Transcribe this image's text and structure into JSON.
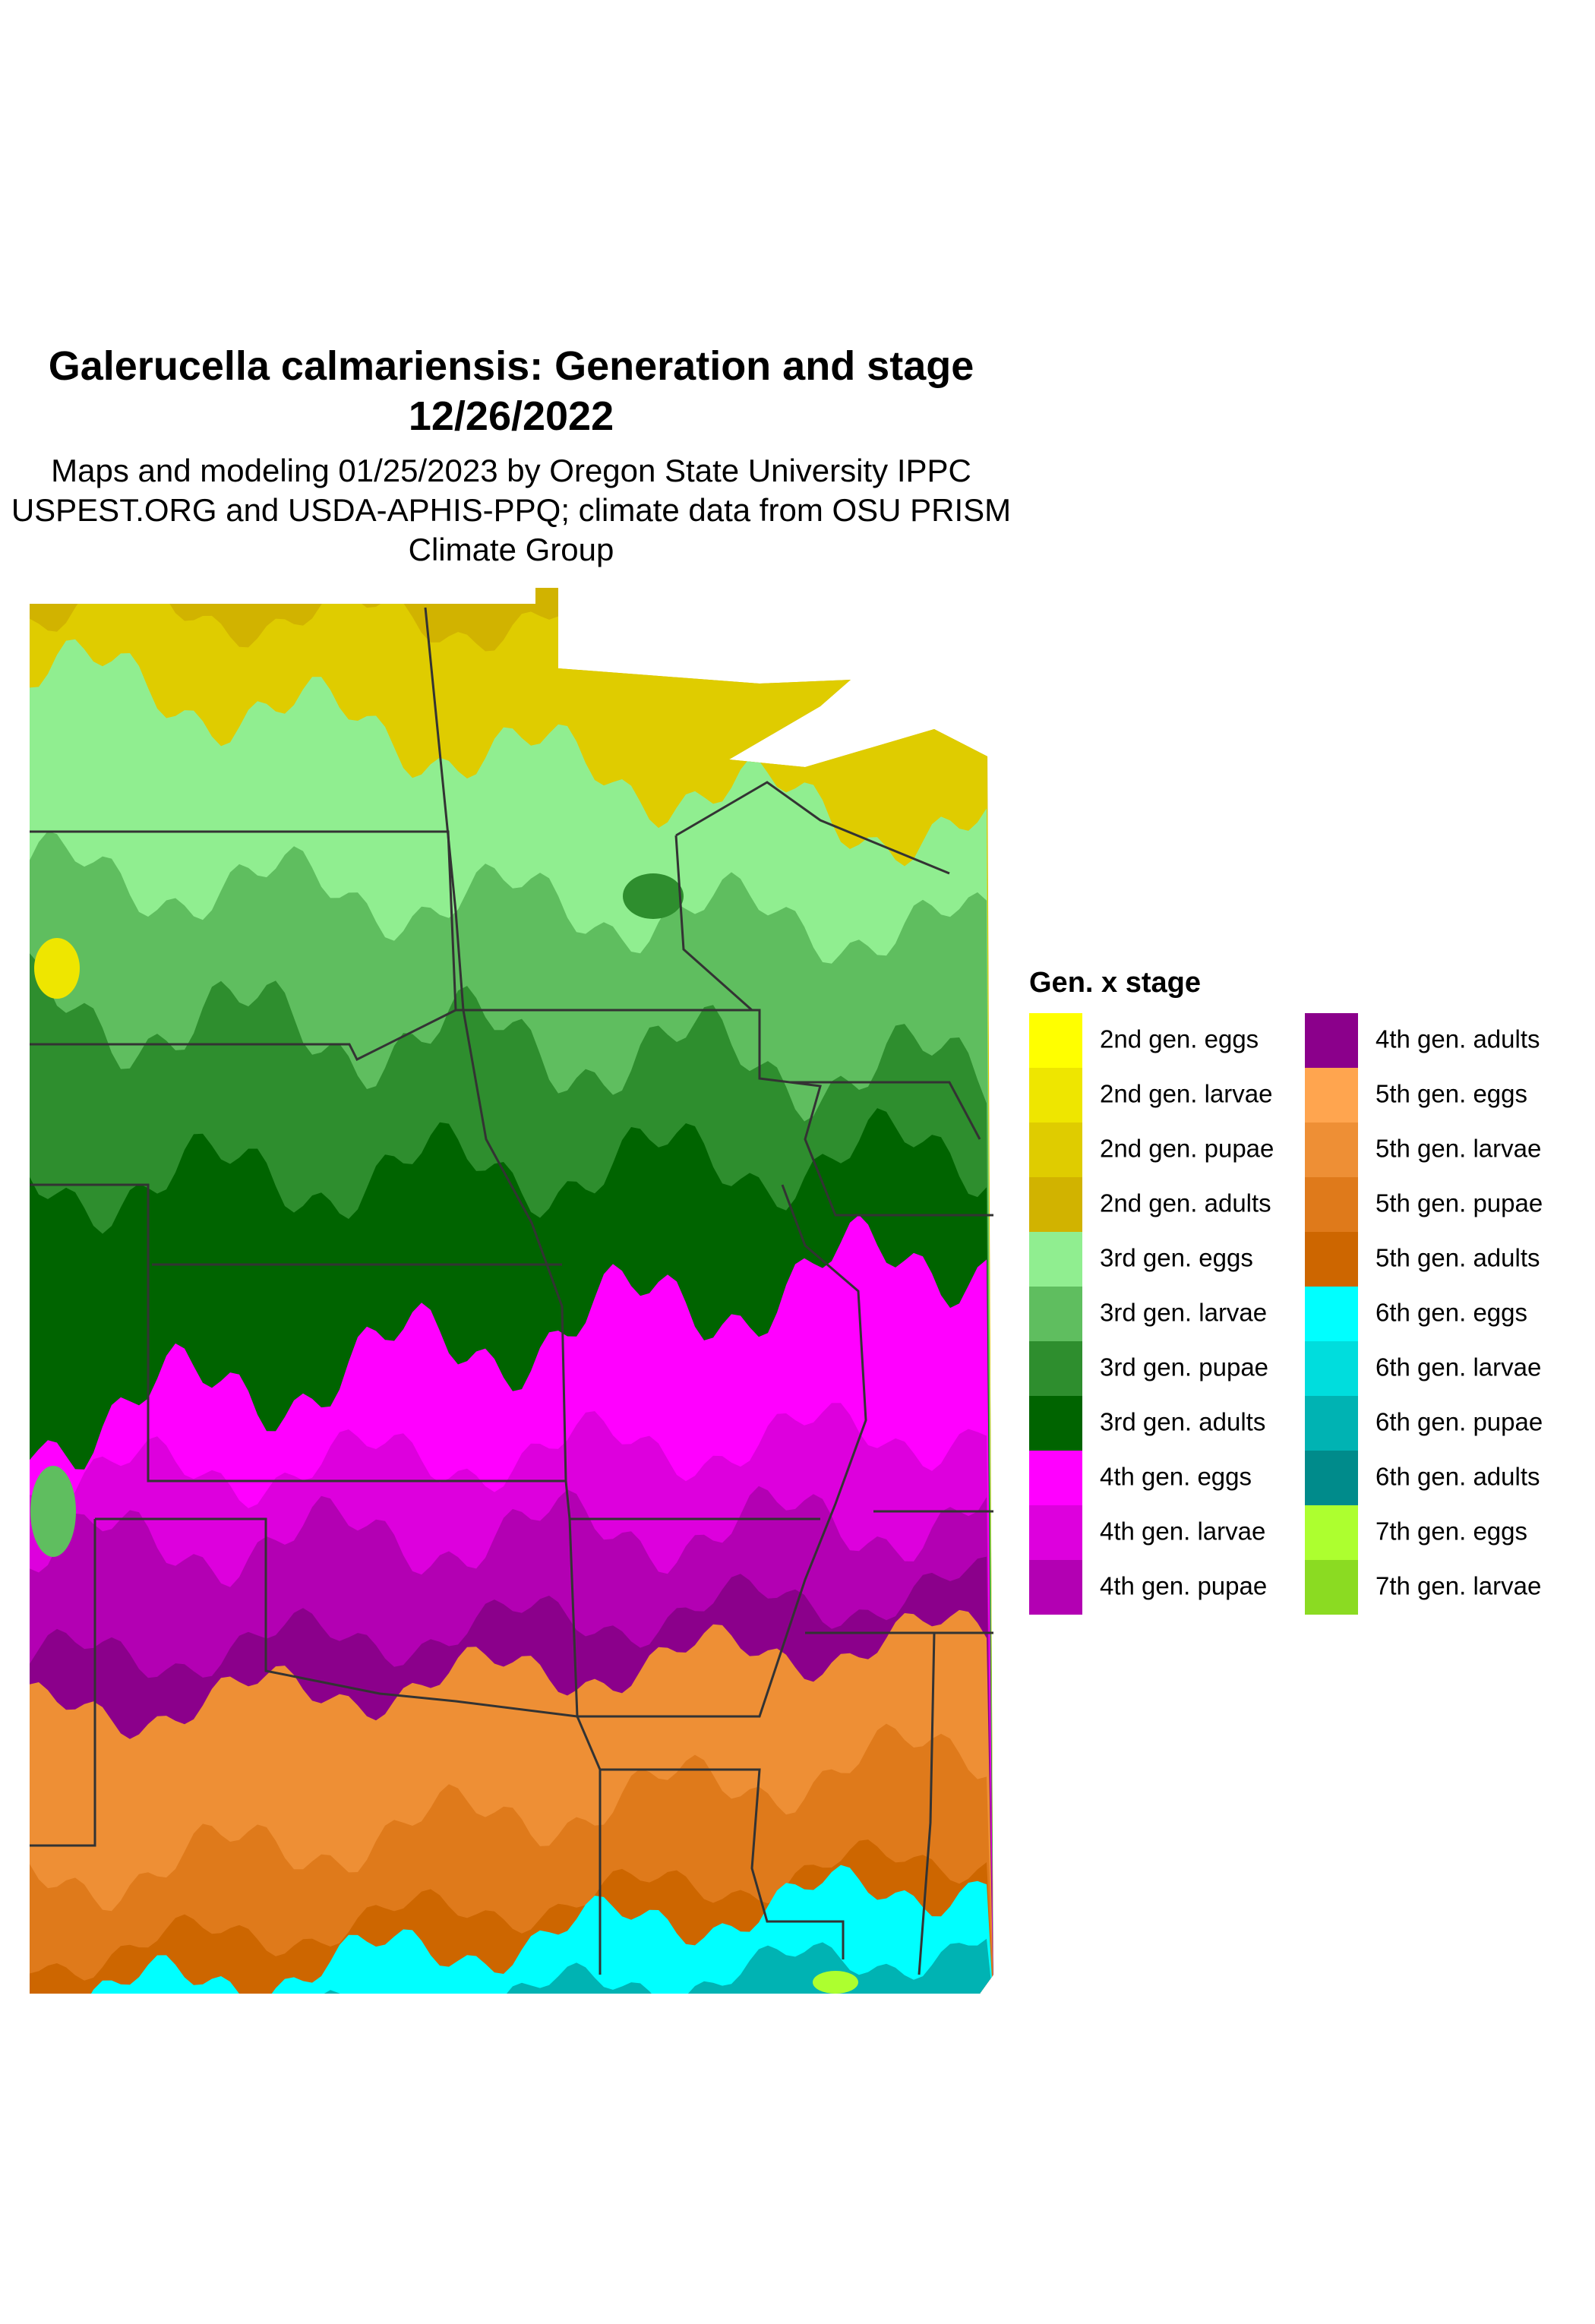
{
  "title": "Galerucella calmariensis: Generation and stage",
  "date": "12/26/2022",
  "subtitle": [
    "Maps and modeling 01/25/2023 by Oregon State University IPPC",
    "USPEST.ORG and USDA-APHIS-PPQ; climate data from OSU PRISM",
    "Climate Group"
  ],
  "legend": {
    "title": "Gen. x stage",
    "items": [
      {
        "label": "2nd gen. eggs",
        "color": "#FFFF00"
      },
      {
        "label": "2nd gen. larvae",
        "color": "#EEE600"
      },
      {
        "label": "2nd gen. pupae",
        "color": "#DFCC00"
      },
      {
        "label": "2nd gen. adults",
        "color": "#D1B300"
      },
      {
        "label": "3rd gen. eggs",
        "color": "#90EE90"
      },
      {
        "label": "3rd gen. larvae",
        "color": "#5FBE5F"
      },
      {
        "label": "3rd gen. pupae",
        "color": "#2E8E2E"
      },
      {
        "label": "3rd gen. adults",
        "color": "#006400"
      },
      {
        "label": "4th gen. eggs",
        "color": "#FF00FF"
      },
      {
        "label": "4th gen. larvae",
        "color": "#DD00DD"
      },
      {
        "label": "4th gen. pupae",
        "color": "#B300B3"
      },
      {
        "label": "4th gen. adults",
        "color": "#8B008B"
      },
      {
        "label": "5th gen. eggs",
        "color": "#FFA54F"
      },
      {
        "label": "5th gen. larvae",
        "color": "#EE8F35"
      },
      {
        "label": "5th gen. pupae",
        "color": "#DF7A1B"
      },
      {
        "label": "5th gen. adults",
        "color": "#CD6600"
      },
      {
        "label": "6th gen. eggs",
        "color": "#00FFFF"
      },
      {
        "label": "6th gen. larvae",
        "color": "#00DDDD"
      },
      {
        "label": "6th gen. pupae",
        "color": "#00B3B3"
      },
      {
        "label": "6th gen. adults",
        "color": "#008B8B"
      },
      {
        "label": "7th gen. eggs",
        "color": "#ADFF2F"
      },
      {
        "label": "7th gen. larvae",
        "color": "#8BDB22"
      }
    ]
  }
}
